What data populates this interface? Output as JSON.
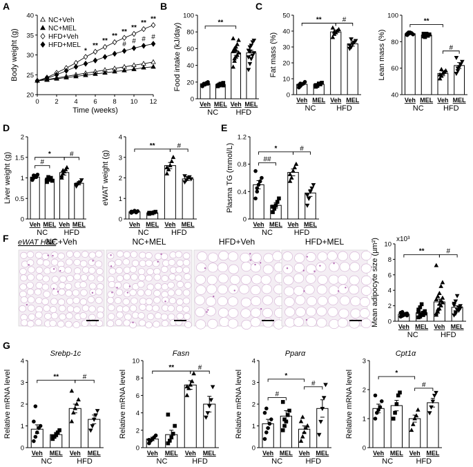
{
  "panel_letters": [
    "A",
    "B",
    "C",
    "D",
    "E",
    "F",
    "G"
  ],
  "groups": {
    "nc": "NC",
    "hfd": "HFD",
    "veh": "Veh",
    "mel": "MEL"
  },
  "panel_f": {
    "title": "eWAT H&E",
    "images": [
      "NC+Veh",
      "NC+MEL",
      "HFD+Veh",
      "HFD+MEL"
    ]
  },
  "chart_data": [
    {
      "panel": "A",
      "type": "line",
      "xlabel": "Time (weeks)",
      "ylabel": "Body weight (g)",
      "xlim": [
        0,
        12
      ],
      "ylim": [
        20,
        40
      ],
      "xticks": [
        0,
        2,
        4,
        6,
        8,
        10,
        12
      ],
      "yticks": [
        20,
        25,
        30,
        35,
        40
      ],
      "x": [
        0,
        1,
        2,
        3,
        4,
        5,
        6,
        7,
        8,
        9,
        10,
        11,
        12
      ],
      "series": [
        {
          "name": "NC+Veh",
          "marker": "triangle-open",
          "values": [
            23.5,
            23.8,
            24.2,
            24.6,
            25,
            25.4,
            25.8,
            26.2,
            26.6,
            27,
            27.4,
            27.8,
            28.2
          ]
        },
        {
          "name": "NC+MEL",
          "marker": "triangle-filled",
          "values": [
            23.5,
            23.7,
            24,
            24.3,
            24.6,
            24.9,
            25.2,
            25.5,
            25.8,
            26.1,
            26.4,
            26.8,
            27
          ]
        },
        {
          "name": "HFD+Veh",
          "marker": "diamond-open",
          "values": [
            23.5,
            24.3,
            25.5,
            26.7,
            28,
            29.5,
            30.8,
            32,
            33.2,
            34.3,
            35.3,
            36.5,
            37.5
          ]
        },
        {
          "name": "HFD+MEL",
          "marker": "diamond-filled",
          "values": [
            23.5,
            24.1,
            25,
            26,
            27,
            27.8,
            28.6,
            29.5,
            30.3,
            31,
            31.7,
            32.3,
            32.8
          ]
        }
      ],
      "annotations": [
        {
          "week": 5,
          "text": "*"
        },
        {
          "week": 6,
          "text": "**"
        },
        {
          "week": 7,
          "text": "**"
        },
        {
          "week": 8,
          "text": "**"
        },
        {
          "week": 9,
          "text": "**"
        },
        {
          "week": 10,
          "text": "**"
        },
        {
          "week": 11,
          "text": "**"
        },
        {
          "week": 12,
          "text": "**"
        },
        {
          "week": 9,
          "text": "#",
          "row": 2
        },
        {
          "week": 10,
          "text": "#",
          "row": 2
        },
        {
          "week": 11,
          "text": "#",
          "row": 2
        },
        {
          "week": 12,
          "text": "#",
          "row": 2
        }
      ]
    },
    {
      "panel": "B",
      "type": "bar",
      "ylabel": "Food intake (kJ/day)",
      "ylim": [
        0,
        100
      ],
      "yticks": [
        0,
        20,
        40,
        60,
        80,
        100
      ],
      "categories": [
        "Veh",
        "MEL",
        "Veh",
        "MEL"
      ],
      "values": [
        18,
        17,
        55,
        55
      ],
      "sem": [
        1,
        1,
        3,
        3
      ],
      "markers": [
        "circle",
        "square",
        "triangle",
        "inv-triangle"
      ],
      "points": [
        [
          15,
          17,
          18,
          19,
          20,
          16,
          18,
          17,
          19,
          18
        ],
        [
          15,
          16,
          17,
          18,
          19,
          16,
          17,
          18,
          17,
          16
        ],
        [
          38,
          45,
          50,
          52,
          55,
          57,
          60,
          62,
          65,
          70,
          72,
          48,
          58
        ],
        [
          35,
          42,
          48,
          52,
          55,
          58,
          62,
          64,
          68,
          70,
          50,
          57
        ]
      ],
      "brackets": [
        {
          "from": 0,
          "to": 2,
          "text": "**",
          "y": 87
        }
      ]
    },
    {
      "panel": "C1",
      "type": "bar",
      "ylabel": "Fat mass (%)",
      "ylim": [
        0,
        50
      ],
      "yticks": [
        0,
        10,
        20,
        30,
        40,
        50
      ],
      "categories": [
        "Veh",
        "MEL",
        "Veh",
        "MEL"
      ],
      "values": [
        6.5,
        6.5,
        39.5,
        32
      ],
      "sem": [
        0.6,
        0.6,
        1.2,
        1.5
      ],
      "markers": [
        "circle",
        "square",
        "triangle",
        "inv-triangle"
      ],
      "points": [
        [
          4.5,
          5.5,
          6.5,
          7,
          8,
          6,
          7
        ],
        [
          5,
          6,
          7,
          6.5,
          7.5,
          6,
          5.5
        ],
        [
          36,
          38,
          39,
          40,
          41,
          42,
          39.5
        ],
        [
          29,
          30,
          32,
          33,
          34,
          31,
          35
        ]
      ],
      "brackets": [
        {
          "from": 0,
          "to": 2,
          "text": "**",
          "y": 45
        },
        {
          "from": 2,
          "to": 3,
          "text": "#",
          "y": 45
        }
      ]
    },
    {
      "panel": "C2",
      "type": "bar",
      "ylabel": "Lean mass (%)",
      "ylim": [
        40,
        100
      ],
      "yticks": [
        40,
        60,
        80,
        100
      ],
      "categories": [
        "Veh",
        "MEL",
        "Veh",
        "MEL"
      ],
      "values": [
        86,
        85,
        56,
        62
      ],
      "sem": [
        0.7,
        0.7,
        1.8,
        2.2
      ],
      "markers": [
        "circle",
        "square",
        "triangle",
        "inv-triangle"
      ],
      "points": [
        [
          85,
          86,
          87,
          86.5,
          85.5,
          86,
          87
        ],
        [
          84,
          85,
          86,
          84.5,
          85.5,
          86,
          83.5
        ],
        [
          52,
          54,
          56,
          57,
          58,
          55,
          59
        ],
        [
          56,
          58,
          61,
          63,
          65,
          68,
          60
        ]
      ],
      "brackets": [
        {
          "from": 0,
          "to": 2,
          "text": "**",
          "y": 93
        },
        {
          "from": 2,
          "to": 3,
          "text": "#",
          "y": 73
        }
      ]
    },
    {
      "panel": "D1",
      "type": "bar",
      "ylabel": "Liver weight (g)",
      "ylim": [
        0,
        2.0
      ],
      "yticks": [
        0,
        0.5,
        1.0,
        1.5,
        2.0
      ],
      "categories": [
        "Veh",
        "MEL",
        "Veh",
        "MEL"
      ],
      "values": [
        1.02,
        0.97,
        1.13,
        0.87
      ],
      "sem": [
        0.03,
        0.03,
        0.06,
        0.04
      ],
      "markers": [
        "circle",
        "square",
        "triangle",
        "inv-triangle"
      ],
      "points": [
        [
          0.95,
          1.0,
          1.05,
          1.02,
          1.08,
          0.98,
          1.06
        ],
        [
          0.9,
          0.95,
          0.98,
          1.0,
          0.93,
          0.96,
          1.02
        ],
        [
          1.0,
          1.1,
          1.15,
          1.2,
          1.25,
          1.05,
          1.18
        ],
        [
          0.8,
          0.85,
          0.88,
          0.9,
          0.95,
          0.83
        ]
      ],
      "brackets": [
        {
          "from": 0,
          "to": 1,
          "text": "#",
          "y": 1.3
        },
        {
          "from": 0,
          "to": 2,
          "text": "*",
          "y": 1.5
        },
        {
          "from": 2,
          "to": 3,
          "text": "#",
          "y": 1.5
        }
      ]
    },
    {
      "panel": "D2",
      "type": "bar",
      "ylabel": "eWAT weight (g)",
      "ylim": [
        0,
        4
      ],
      "yticks": [
        0,
        1,
        2,
        3,
        4
      ],
      "categories": [
        "Veh",
        "MEL",
        "Veh",
        "MEL"
      ],
      "values": [
        0.35,
        0.3,
        2.6,
        1.95
      ],
      "sem": [
        0.03,
        0.03,
        0.15,
        0.08
      ],
      "markers": [
        "circle",
        "square",
        "triangle",
        "inv-triangle"
      ],
      "points": [
        [
          0.3,
          0.35,
          0.4,
          0.32,
          0.38,
          0.36
        ],
        [
          0.25,
          0.3,
          0.28,
          0.32,
          0.35,
          0.3
        ],
        [
          2.2,
          2.4,
          2.6,
          2.8,
          3.0,
          2.5
        ],
        [
          1.8,
          1.9,
          2.0,
          2.05,
          1.95,
          2.1
        ]
      ],
      "brackets": [
        {
          "from": 0,
          "to": 2,
          "text": "**",
          "y": 3.4
        },
        {
          "from": 2,
          "to": 3,
          "text": "#",
          "y": 3.4
        }
      ]
    },
    {
      "panel": "E",
      "type": "bar",
      "ylabel": "Plasma TG (mmol/L)",
      "ylim": [
        0,
        1.2
      ],
      "yticks": [
        0,
        0.4,
        0.8,
        1.2
      ],
      "categories": [
        "Veh",
        "MEL",
        "Veh",
        "MEL"
      ],
      "values": [
        0.5,
        0.2,
        0.68,
        0.38
      ],
      "sem": [
        0.06,
        0.04,
        0.05,
        0.05
      ],
      "markers": [
        "circle",
        "square",
        "triangle",
        "inv-triangle"
      ],
      "points": [
        [
          0.3,
          0.4,
          0.5,
          0.55,
          0.6,
          0.7,
          0.45
        ],
        [
          0.1,
          0.15,
          0.2,
          0.25,
          0.3,
          0.18
        ],
        [
          0.55,
          0.6,
          0.7,
          0.75,
          0.8,
          0.65
        ],
        [
          0.2,
          0.3,
          0.4,
          0.45,
          0.5,
          0.35
        ]
      ],
      "brackets": [
        {
          "from": 0,
          "to": 1,
          "text": "##",
          "y": 0.82
        },
        {
          "from": 0,
          "to": 2,
          "text": "*",
          "y": 0.98
        },
        {
          "from": 2,
          "to": 3,
          "text": "#",
          "y": 0.98
        }
      ]
    },
    {
      "panel": "F",
      "type": "bar",
      "ylabel": "Mean adipocyte size (µm²)",
      "yscale_label": "x10³",
      "ylim": [
        0,
        10
      ],
      "yticks": [
        0,
        2,
        4,
        6,
        8,
        10
      ],
      "categories": [
        "Veh",
        "MEL",
        "Veh",
        "MEL"
      ],
      "values": [
        0.9,
        1.1,
        2.5,
        1.8
      ],
      "sem": [
        0.1,
        0.15,
        0.35,
        0.2
      ],
      "markers": [
        "circle",
        "square",
        "triangle",
        "inv-triangle"
      ],
      "points": [
        [
          0.6,
          0.7,
          0.8,
          0.9,
          1.0,
          1.1,
          1.2,
          0.85,
          0.95,
          0.75,
          1.05
        ],
        [
          0.5,
          0.7,
          0.9,
          1.1,
          1.3,
          1.5,
          1.8,
          2.2,
          0.8,
          1.0,
          1.2,
          0.6
        ],
        [
          0.8,
          1.2,
          1.6,
          2.0,
          2.4,
          2.8,
          3.2,
          3.6,
          4.5,
          5.0,
          7.2,
          1.5,
          2.2,
          2.6,
          3.0,
          1.0
        ],
        [
          0.8,
          1.2,
          1.5,
          1.8,
          2.0,
          2.3,
          2.6,
          3.3,
          1.4,
          1.7,
          2.1,
          1.0
        ]
      ],
      "brackets": [
        {
          "from": 0,
          "to": 2,
          "text": "**",
          "y": 8.6
        },
        {
          "from": 2,
          "to": 3,
          "text": "#",
          "y": 8.6
        }
      ]
    },
    {
      "panel": "G1",
      "type": "bar",
      "gene": "Srebp-1c",
      "ylabel": "Relative mRNA level",
      "ylim": [
        0,
        4
      ],
      "yticks": [
        0,
        1,
        2,
        3,
        4
      ],
      "categories": [
        "Veh",
        "MEL",
        "Veh",
        "MEL"
      ],
      "values": [
        0.85,
        0.6,
        1.8,
        1.3
      ],
      "sem": [
        0.2,
        0.1,
        0.2,
        0.2
      ],
      "markers": [
        "circle",
        "square",
        "triangle",
        "inv-triangle"
      ],
      "points": [
        [
          0.3,
          0.5,
          0.7,
          0.9,
          1.0,
          1.2,
          1.9
        ],
        [
          0.4,
          0.5,
          0.6,
          0.7,
          0.8,
          0.5
        ],
        [
          1.2,
          1.6,
          1.8,
          2.0,
          2.2,
          2.6
        ],
        [
          0.8,
          1.0,
          1.3,
          1.5,
          1.7
        ]
      ],
      "brackets": [
        {
          "from": 0,
          "to": 2,
          "text": "**",
          "y": 3.1
        },
        {
          "from": 2,
          "to": 3,
          "text": "#",
          "y": 3.1
        }
      ]
    },
    {
      "panel": "G2",
      "type": "bar",
      "gene": "Fasn",
      "ylabel": "Relative mRNA level",
      "ylim": [
        0,
        10
      ],
      "yticks": [
        0,
        2,
        4,
        6,
        8,
        10
      ],
      "categories": [
        "Veh",
        "MEL",
        "Veh",
        "MEL"
      ],
      "values": [
        1.0,
        1.5,
        7.2,
        5.0
      ],
      "sem": [
        0.2,
        0.5,
        0.5,
        0.9
      ],
      "markers": [
        "circle",
        "square",
        "triangle",
        "inv-triangle"
      ],
      "points": [
        [
          0.5,
          0.8,
          1.0,
          1.2,
          1.4,
          0.9
        ],
        [
          0.5,
          0.8,
          1.2,
          1.6,
          2.5,
          3.8
        ],
        [
          6.0,
          6.8,
          7.2,
          7.6,
          8.5,
          7.0
        ],
        [
          3.5,
          4.0,
          4.8,
          5.5,
          7.0
        ]
      ],
      "brackets": [
        {
          "from": 0,
          "to": 2,
          "text": "**",
          "y": 8.8
        },
        {
          "from": 2,
          "to": 3,
          "text": "#",
          "y": 8.8
        }
      ]
    },
    {
      "panel": "G3",
      "type": "bar",
      "gene": "Pparα",
      "ylabel": "Relative mRNA level",
      "ylim": [
        0,
        4
      ],
      "yticks": [
        0,
        1,
        2,
        3,
        4
      ],
      "categories": [
        "Veh",
        "MEL",
        "Veh",
        "MEL"
      ],
      "values": [
        1.1,
        1.45,
        0.85,
        1.8
      ],
      "sem": [
        0.2,
        0.25,
        0.15,
        0.4
      ],
      "markers": [
        "circle",
        "square",
        "triangle",
        "inv-triangle"
      ],
      "points": [
        [
          0.4,
          0.7,
          0.9,
          1.1,
          1.3,
          1.6,
          1.8
        ],
        [
          0.8,
          1.0,
          1.2,
          1.5,
          1.7,
          2.1,
          1.3
        ],
        [
          0.3,
          0.5,
          0.7,
          0.9,
          1.0,
          1.2,
          1.4
        ],
        [
          0.6,
          1.2,
          1.8,
          2.3,
          2.9
        ]
      ],
      "brackets": [
        {
          "from": 0,
          "to": 1,
          "text": "#",
          "y": 2.3
        },
        {
          "from": 0,
          "to": 2,
          "text": "*",
          "y": 3.15
        },
        {
          "from": 2,
          "to": 3,
          "text": "#",
          "y": 2.8
        }
      ]
    },
    {
      "panel": "G4",
      "type": "bar",
      "gene": "Cpt1α",
      "ylabel": "Relative mRNA level",
      "ylim": [
        0,
        3
      ],
      "yticks": [
        0,
        1,
        2,
        3
      ],
      "categories": [
        "Veh",
        "MEL",
        "Veh",
        "MEL"
      ],
      "values": [
        1.35,
        1.45,
        1.0,
        1.55
      ],
      "sem": [
        0.15,
        0.18,
        0.12,
        0.15
      ],
      "markers": [
        "circle",
        "square",
        "triangle",
        "inv-triangle"
      ],
      "points": [
        [
          1.0,
          1.2,
          1.3,
          1.4,
          1.6,
          1.8
        ],
        [
          1.0,
          1.2,
          1.5,
          1.8,
          1.9
        ],
        [
          0.6,
          0.8,
          1.0,
          1.1,
          1.3
        ],
        [
          1.2,
          1.4,
          1.6,
          1.8,
          1.9
        ]
      ],
      "brackets": [
        {
          "from": 0,
          "to": 2,
          "text": "*",
          "y": 2.45
        },
        {
          "from": 2,
          "to": 3,
          "text": "#",
          "y": 2.05
        }
      ]
    }
  ]
}
